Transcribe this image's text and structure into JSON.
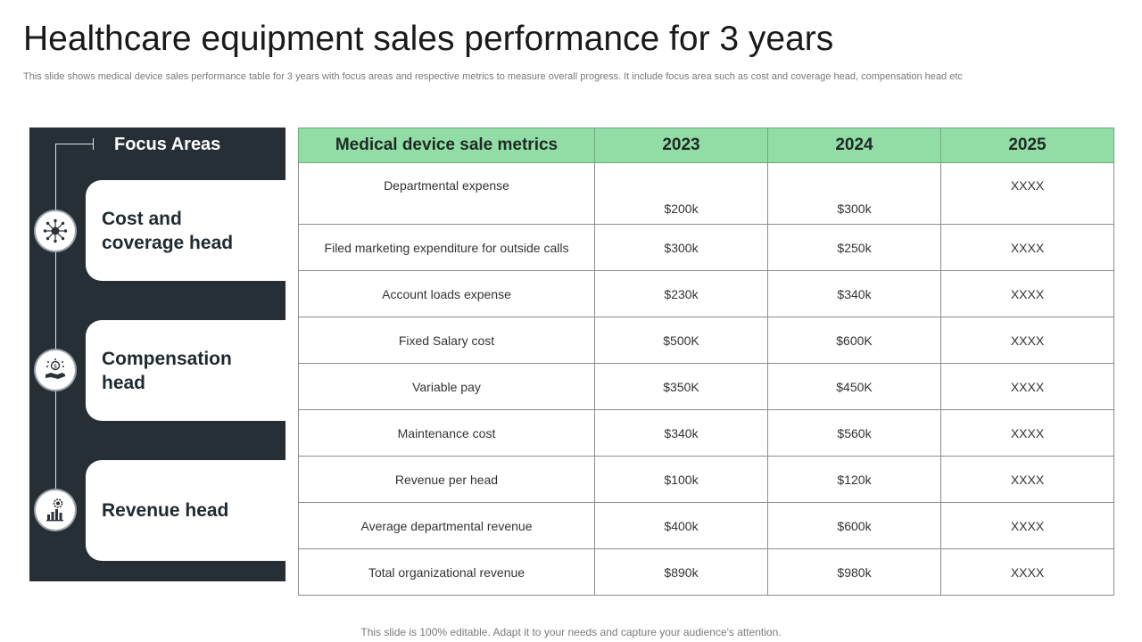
{
  "title": "Healthcare equipment sales performance for 3 years",
  "subtitle": "This slide shows medical device sales performance table for 3 years with focus areas and respective metrics to measure overall progress. It include focus area such as cost and coverage head, compensation head etc",
  "focus_panel": {
    "heading": "Focus Areas",
    "items": [
      {
        "label": "Cost and\ncoverage head",
        "icon": "globe-network-icon"
      },
      {
        "label": "Compensation\nhead",
        "icon": "hand-money-icon"
      },
      {
        "label": "Revenue head",
        "icon": "bar-chart-gear-icon"
      }
    ]
  },
  "table": {
    "headers": [
      "Medical device sale metrics",
      "2023",
      "2024",
      "2025"
    ],
    "rows": [
      [
        "Departmental expense",
        "$200k",
        "$300k",
        "XXXX"
      ],
      [
        "Filed marketing expenditure for outside calls",
        "$300k",
        "$250k",
        "XXXX"
      ],
      [
        "Account loads expense",
        "$230k",
        "$340k",
        "XXXX"
      ],
      [
        "Fixed Salary cost",
        "$500K",
        "$600K",
        "XXXX"
      ],
      [
        "Variable pay",
        "$350K",
        "$450K",
        "XXXX"
      ],
      [
        "Maintenance cost",
        "$340k",
        "$560k",
        "XXXX"
      ],
      [
        "Revenue per head",
        "$100k",
        "$120k",
        "XXXX"
      ],
      [
        "Average departmental revenue",
        "$400k",
        "$600k",
        "XXXX"
      ],
      [
        "Total organizational revenue",
        "$890k",
        "$980k",
        "XXXX"
      ]
    ]
  },
  "footer": "This slide is 100% editable. Adapt it to your needs and capture your audience's attention.",
  "colors": {
    "header_green": "#92dda6",
    "panel_dark": "#262f36"
  }
}
